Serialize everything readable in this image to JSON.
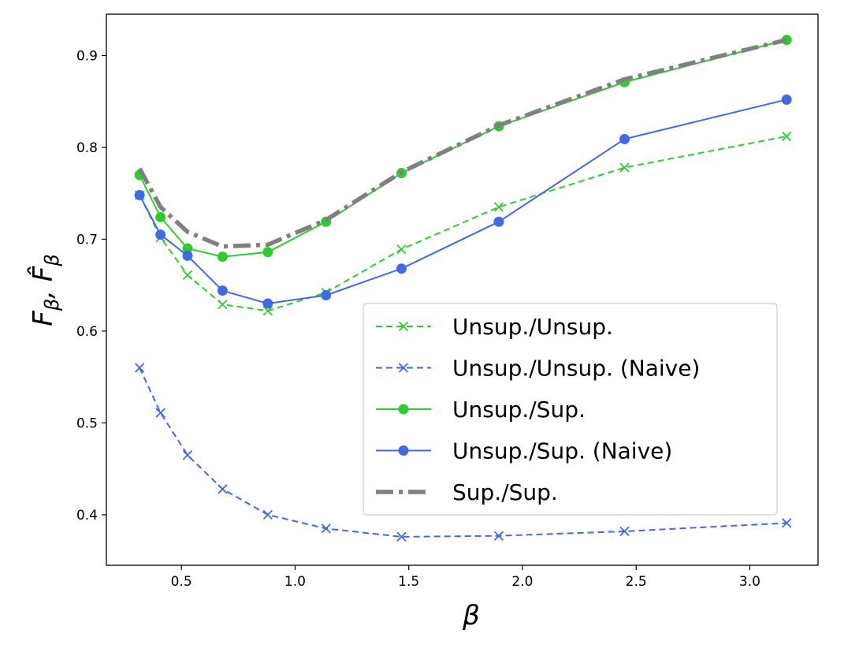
{
  "chart_data": {
    "type": "line",
    "xlabel": "β",
    "ylabel": {
      "main": "F",
      "sub": "β",
      "sep": ", ",
      "main2": "F̂",
      "sub2": "β"
    },
    "xlim": [
      0.17,
      3.3
    ],
    "ylim": [
      0.345,
      0.945
    ],
    "xticks": [
      {
        "value": 0.5,
        "label": "0.5"
      },
      {
        "value": 1.0,
        "label": "1.0"
      },
      {
        "value": 1.5,
        "label": "1.5"
      },
      {
        "value": 2.0,
        "label": "2.0"
      },
      {
        "value": 2.5,
        "label": "2.5"
      },
      {
        "value": 3.0,
        "label": "3.0"
      }
    ],
    "yticks": [
      {
        "value": 0.4,
        "label": "0.4"
      },
      {
        "value": 0.5,
        "label": "0.5"
      },
      {
        "value": 0.6,
        "label": "0.6"
      },
      {
        "value": 0.7,
        "label": "0.7"
      },
      {
        "value": 0.8,
        "label": "0.8"
      },
      {
        "value": 0.9,
        "label": "0.9"
      }
    ],
    "grid": false,
    "legend_position": "center-right",
    "x": [
      0.316,
      0.408,
      0.527,
      0.681,
      0.88,
      1.136,
      1.468,
      1.896,
      2.449,
      3.162
    ],
    "series": [
      {
        "name": "Unsup./Unsup.",
        "color": "#2ecc2e",
        "dash": "dashed",
        "marker": "x",
        "values": [
          0.748,
          0.702,
          0.661,
          0.629,
          0.622,
          0.642,
          0.689,
          0.735,
          0.778,
          0.812
        ]
      },
      {
        "name": "Unsup./Unsup. (Naive)",
        "color": "#4169e1",
        "dash": "dashed",
        "marker": "x",
        "values": [
          0.56,
          0.511,
          0.465,
          0.428,
          0.4,
          0.385,
          0.376,
          0.377,
          0.382,
          0.391
        ]
      },
      {
        "name": "Unsup./Sup.",
        "color": "#2ecc2e",
        "dash": "solid",
        "marker": "o",
        "values": [
          0.77,
          0.724,
          0.69,
          0.681,
          0.686,
          0.719,
          0.772,
          0.823,
          0.871,
          0.917
        ]
      },
      {
        "name": "Unsup./Sup. (Naive)",
        "color": "#4169e1",
        "dash": "solid",
        "marker": "o",
        "values": [
          0.748,
          0.705,
          0.682,
          0.644,
          0.63,
          0.639,
          0.668,
          0.719,
          0.809,
          0.852
        ]
      },
      {
        "name": "Sup./Sup.",
        "color": "#808080",
        "dash": "dashdot",
        "marker": "none",
        "values": [
          0.777,
          0.735,
          0.708,
          0.692,
          0.694,
          0.721,
          0.773,
          0.824,
          0.874,
          0.917
        ]
      }
    ]
  }
}
